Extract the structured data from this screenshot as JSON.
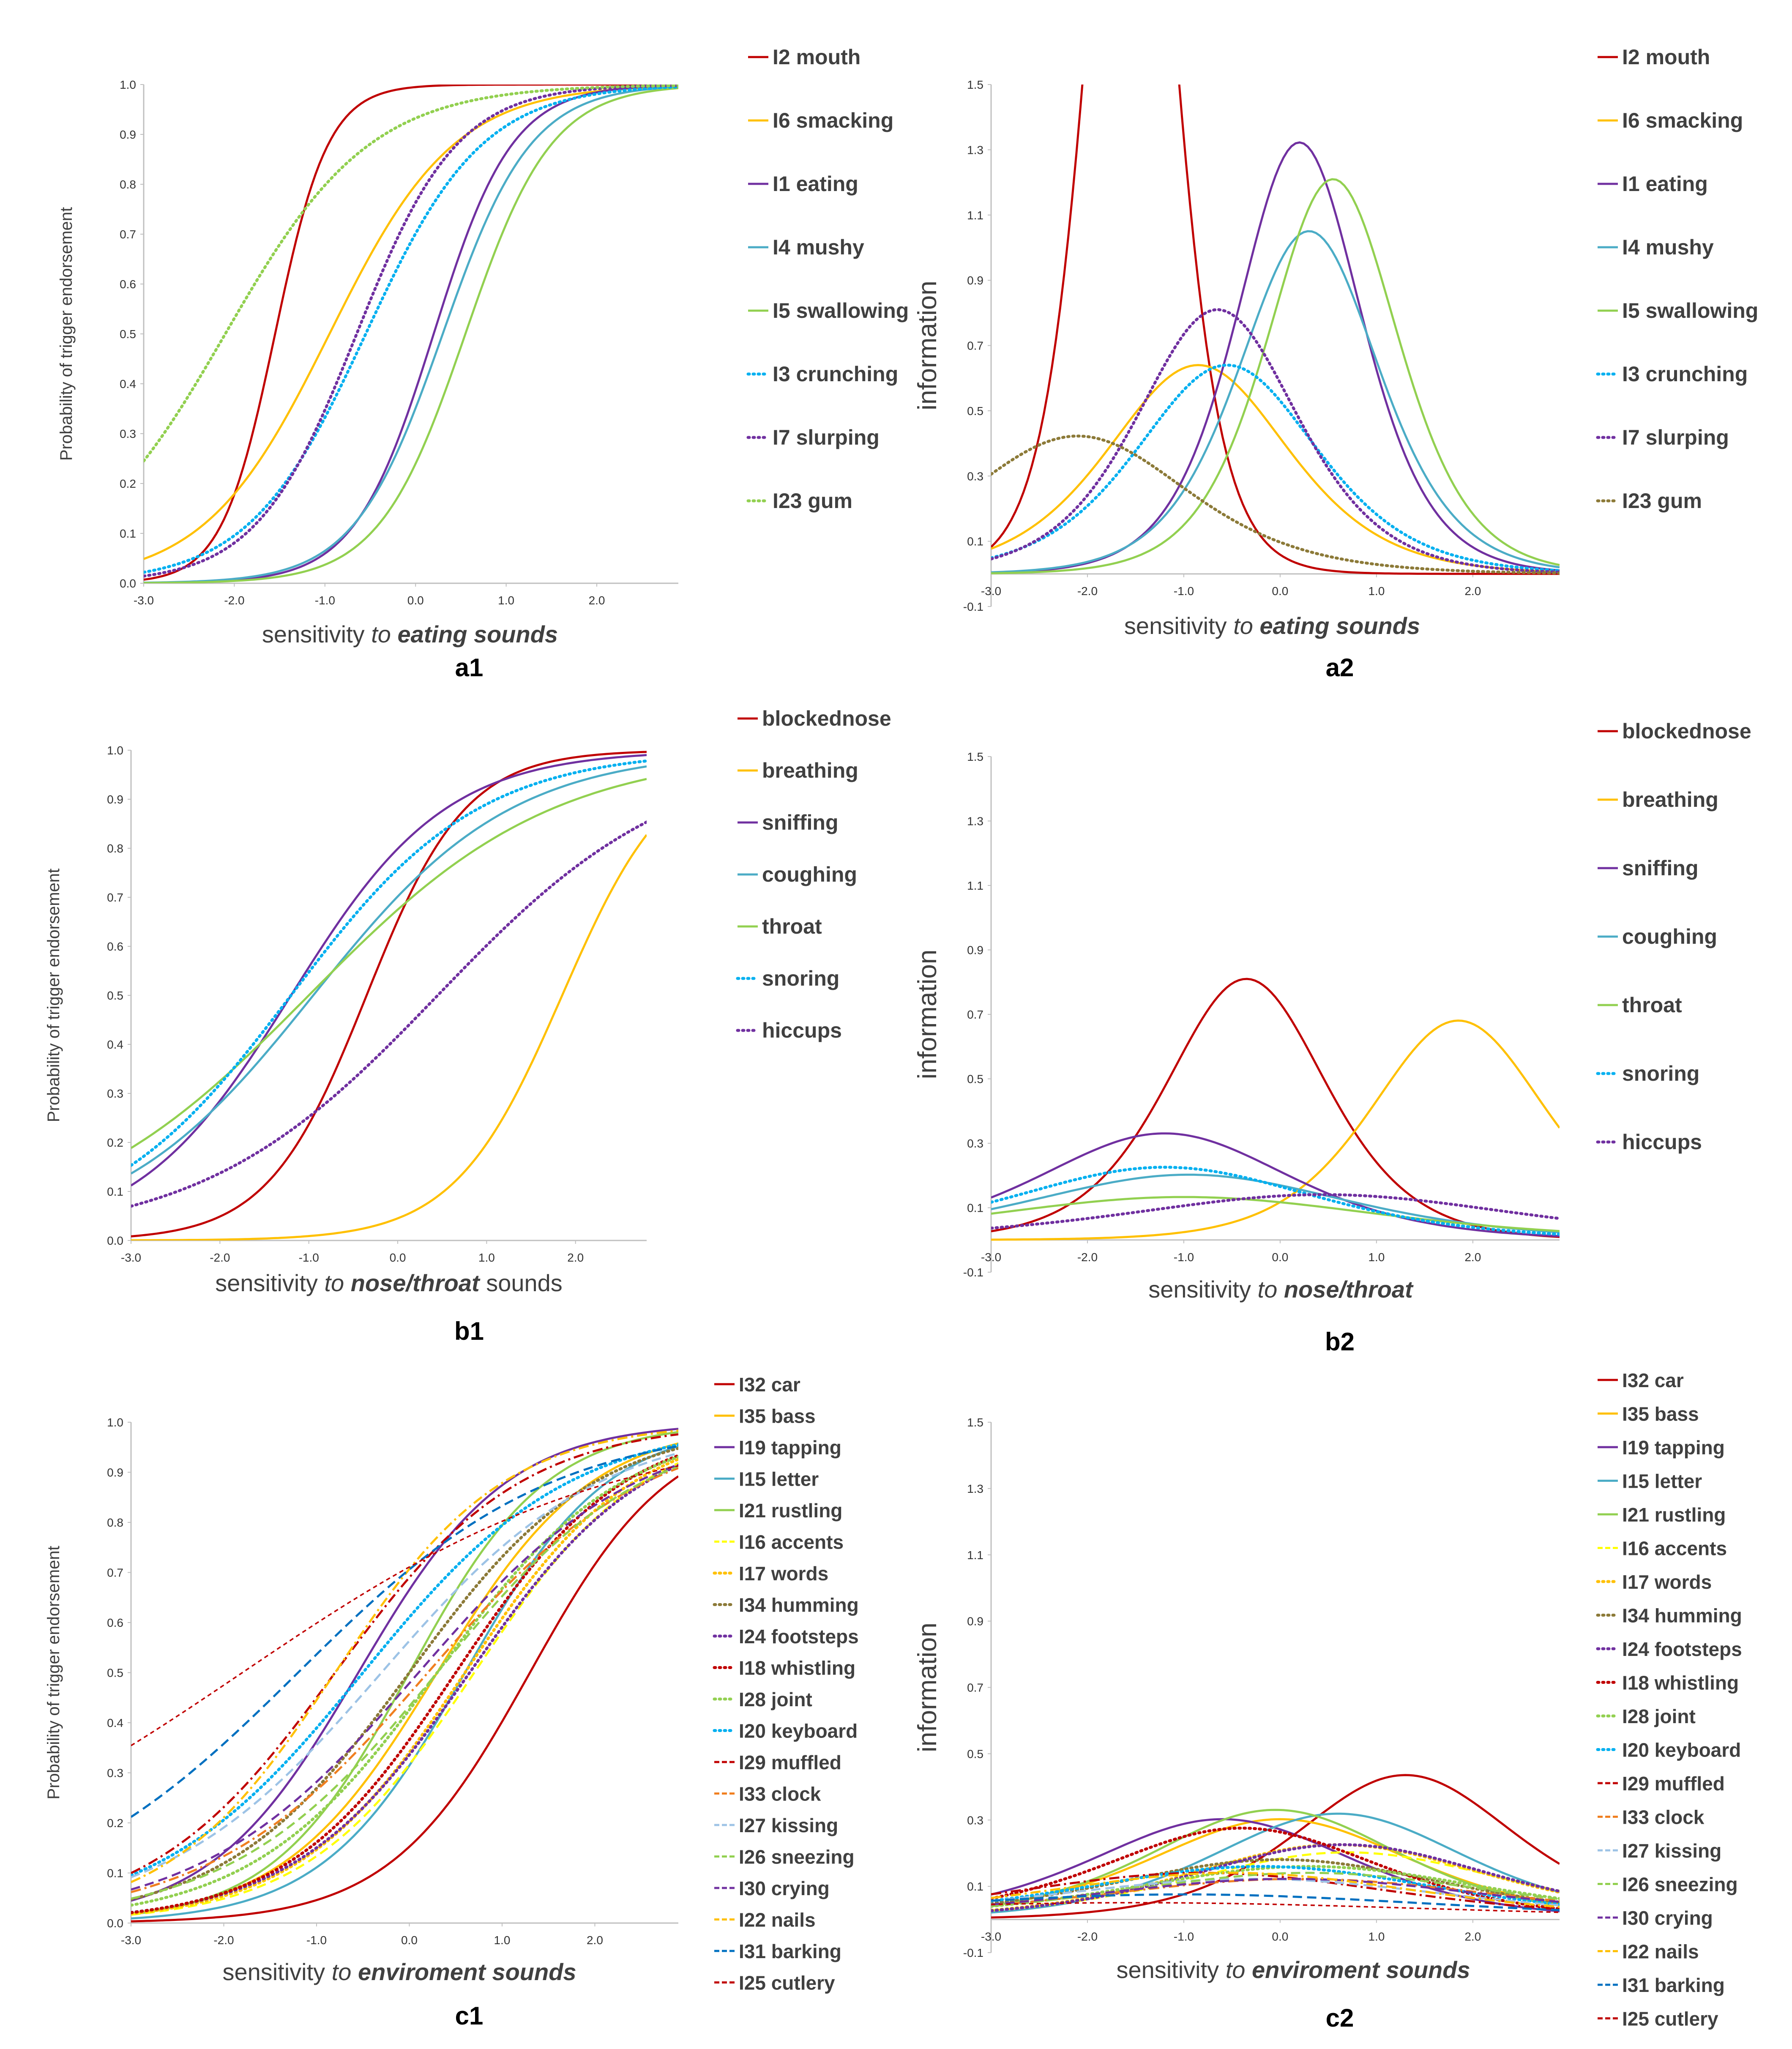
{
  "colors": {
    "red": "#C00000",
    "orange": "#FFC000",
    "purple": "#7030A0",
    "teal": "#4BACC6",
    "green": "#92D050",
    "cyan": "#00B0F0",
    "olive": "#8C7A38",
    "darkorange": "#F07F20",
    "lightblue": "#9DC3E6",
    "blue": "#0070C0",
    "yellow": "#FFFF00",
    "gold": "#FFD700",
    "axis": "#BFBFBF"
  },
  "chart_data": [
    {
      "id": "a1",
      "type": "line",
      "panel_label": "a1",
      "title": "",
      "xlabel_pre": "sensitivity ",
      "xlabel_it": "to ",
      "xlabel_bold": "eating sounds",
      "xlabel_post": "",
      "ylabel": "Probability of trigger endorsement",
      "xlim": [
        -3.0,
        2.9
      ],
      "ylim": [
        0.0,
        1.0
      ],
      "xticks": [
        "-3.0",
        "-2.0",
        "-1.0",
        "0.0",
        "1.0",
        "2.0"
      ],
      "yticks": [
        "0.0",
        "0.1",
        "0.2",
        "0.3",
        "0.4",
        "0.5",
        "0.6",
        "0.7",
        "0.8",
        "0.9",
        "1.0"
      ],
      "series": [
        {
          "name": "I2 mouth",
          "color": "#C00000",
          "dash": "solid",
          "a": 3.4,
          "b": -1.55
        },
        {
          "name": "I6 smacking",
          "color": "#FFC000",
          "dash": "solid",
          "a": 1.45,
          "b": -0.95
        },
        {
          "name": "I1 eating",
          "color": "#7030A0",
          "dash": "solid",
          "a": 2.3,
          "b": 0.2
        },
        {
          "name": "I4 mushy",
          "color": "#4BACC6",
          "dash": "solid",
          "a": 2.05,
          "b": 0.3
        },
        {
          "name": "I5 swallowing",
          "color": "#92D050",
          "dash": "solid",
          "a": 2.1,
          "b": 0.55
        },
        {
          "name": "I3 crunching",
          "color": "#00B0F0",
          "dash": "dot",
          "a": 1.55,
          "b": -0.55
        },
        {
          "name": "I7 slurping",
          "color": "#7030A0",
          "dash": "dot",
          "a": 1.8,
          "b": -0.65
        },
        {
          "name": "I23 gum",
          "color": "#92D050",
          "dash": "dot",
          "a": 1.25,
          "b": -2.1
        }
      ]
    },
    {
      "id": "a2",
      "type": "line",
      "panel_label": "a2",
      "title": "",
      "xlabel_pre": "sensitivity ",
      "xlabel_it": "to ",
      "xlabel_bold": "eating  sounds",
      "xlabel_post": "",
      "ylabel": "information",
      "xlim": [
        -3.0,
        2.9
      ],
      "ylim": [
        -0.1,
        1.5
      ],
      "xticks": [
        "-3.0",
        "-2.0",
        "-1.0",
        "0.0",
        "1.0",
        "2.0"
      ],
      "yticks": [
        "-0.1",
        "0.1",
        "0.3",
        "0.5",
        "0.7",
        "0.9",
        "1.1",
        "1.3",
        "1.5"
      ],
      "series": [
        {
          "name": "I2 mouth",
          "color": "#C00000",
          "dash": "solid",
          "a": 3.4,
          "b": -1.55
        },
        {
          "name": "I6 smacking",
          "color": "#FFC000",
          "dash": "solid",
          "a": 1.6,
          "b": -0.85
        },
        {
          "name": "I1 eating",
          "color": "#7030A0",
          "dash": "solid",
          "a": 2.3,
          "b": 0.2
        },
        {
          "name": "I4 mushy",
          "color": "#4BACC6",
          "dash": "solid",
          "a": 2.05,
          "b": 0.3
        },
        {
          "name": "I5 swallowing",
          "color": "#92D050",
          "dash": "solid",
          "a": 2.2,
          "b": 0.55
        },
        {
          "name": "I3 crunching",
          "color": "#00B0F0",
          "dash": "dot",
          "a": 1.6,
          "b": -0.55
        },
        {
          "name": "I7 slurping",
          "color": "#7030A0",
          "dash": "dot",
          "a": 1.8,
          "b": -0.65
        },
        {
          "name": "I23 gum",
          "color": "#8C7A38",
          "dash": "dot",
          "a": 1.3,
          "b": -2.1
        }
      ]
    },
    {
      "id": "b1",
      "type": "line",
      "panel_label": "b1",
      "title": "",
      "xlabel_pre": "sensitivity ",
      "xlabel_it": "to ",
      "xlabel_bold": "nose/throat",
      "xlabel_post": " sounds",
      "ylabel": "Probability of trigger endorsement",
      "xlim": [
        -3.0,
        2.8
      ],
      "ylim": [
        0.0,
        1.0
      ],
      "xticks": [
        "-3.0",
        "-2.0",
        "-1.0",
        "0.0",
        "1.0",
        "2.0"
      ],
      "yticks": [
        "0.0",
        "0.1",
        "0.2",
        "0.3",
        "0.4",
        "0.5",
        "0.6",
        "0.7",
        "0.8",
        "0.9",
        "1.0"
      ],
      "series": [
        {
          "name": "blockednose",
          "color": "#C00000",
          "dash": "solid",
          "a": 1.8,
          "b": -0.35
        },
        {
          "name": "breathing",
          "color": "#FFC000",
          "dash": "solid",
          "a": 1.65,
          "b": 1.85
        },
        {
          "name": "sniffing",
          "color": "#7030A0",
          "dash": "solid",
          "a": 1.15,
          "b": -1.2
        },
        {
          "name": "coughing",
          "color": "#4BACC6",
          "dash": "solid",
          "a": 0.9,
          "b": -0.95
        },
        {
          "name": "throat",
          "color": "#92D050",
          "dash": "solid",
          "a": 0.73,
          "b": -1.0
        },
        {
          "name": "snoring",
          "color": "#00B0F0",
          "dash": "dot",
          "a": 0.95,
          "b": -1.2
        },
        {
          "name": "hiccups",
          "color": "#7030A0",
          "dash": "dot",
          "a": 0.75,
          "b": 0.45
        }
      ]
    },
    {
      "id": "b2",
      "type": "line",
      "panel_label": "b2",
      "title": "",
      "xlabel_pre": "sensitivity ",
      "xlabel_it": "to ",
      "xlabel_bold": "nose/throat",
      "xlabel_post": "",
      "ylabel": "information",
      "xlim": [
        -3.0,
        2.9
      ],
      "ylim": [
        -0.1,
        1.5
      ],
      "xticks": [
        "-3.0",
        "-2.0",
        "-1.0",
        "0.0",
        "1.0",
        "2.0"
      ],
      "yticks": [
        "-0.1",
        "0.1",
        "0.3",
        "0.5",
        "0.7",
        "0.9",
        "1.1",
        "1.3",
        "1.5"
      ],
      "series": [
        {
          "name": "blockednose",
          "color": "#C00000",
          "dash": "solid",
          "a": 1.8,
          "b": -0.35
        },
        {
          "name": "breathing",
          "color": "#FFC000",
          "dash": "solid",
          "a": 1.65,
          "b": 1.85
        },
        {
          "name": "sniffing",
          "color": "#7030A0",
          "dash": "solid",
          "a": 1.15,
          "b": -1.2
        },
        {
          "name": "coughing",
          "color": "#4BACC6",
          "dash": "solid",
          "a": 0.9,
          "b": -0.95
        },
        {
          "name": "throat",
          "color": "#92D050",
          "dash": "solid",
          "a": 0.73,
          "b": -1.0
        },
        {
          "name": "snoring",
          "color": "#00B0F0",
          "dash": "dot",
          "a": 0.95,
          "b": -1.2
        },
        {
          "name": "hiccups",
          "color": "#7030A0",
          "dash": "dot",
          "a": 0.75,
          "b": 0.45
        }
      ]
    },
    {
      "id": "c1",
      "type": "line",
      "panel_label": "c1",
      "title": "",
      "xlabel_pre": "sensitivity ",
      "xlabel_it": "to ",
      "xlabel_bold": "enviroment sounds",
      "xlabel_post": "",
      "ylabel": "Probability of trigger endorsement",
      "xlim": [
        -3.0,
        2.9
      ],
      "ylim": [
        0.0,
        1.0
      ],
      "xticks": [
        "-3.0",
        "-2.0",
        "-1.0",
        "0.0",
        "1.0",
        "2.0"
      ],
      "yticks": [
        "0.0",
        "0.1",
        "0.2",
        "0.3",
        "0.4",
        "0.5",
        "0.6",
        "0.7",
        "0.8",
        "0.9",
        "1.0"
      ],
      "series": [
        {
          "name": "I32 car",
          "color": "#C00000",
          "dash": "solid",
          "a": 1.32,
          "b": 1.3
        },
        {
          "name": "I35 bass",
          "color": "#FFC000",
          "dash": "solid",
          "a": 1.2,
          "b": 0.3
        },
        {
          "name": "I19 tapping",
          "color": "#7030A0",
          "dash": "solid",
          "a": 1.25,
          "b": -0.55
        },
        {
          "name": "I15 letter",
          "color": "#4BACC6",
          "dash": "solid",
          "a": 1.3,
          "b": 0.6
        },
        {
          "name": "I21 rustling",
          "color": "#92D050",
          "dash": "solid",
          "a": 1.35,
          "b": 0.0
        },
        {
          "name": "I16 accents",
          "color": "#FFFF00",
          "dash": "dash",
          "a": 1.1,
          "b": 0.7
        },
        {
          "name": "I17 words",
          "color": "#FFC000",
          "dash": "dot",
          "a": 1.1,
          "b": 0.6
        },
        {
          "name": "I34 humming",
          "color": "#8C7A38",
          "dash": "dot",
          "a": 1.0,
          "b": 0.0
        },
        {
          "name": "I24 footsteps",
          "color": "#7030A0",
          "dash": "dot",
          "a": 1.05,
          "b": 0.65
        },
        {
          "name": "I18 whistling",
          "color": "#C00000",
          "dash": "dot",
          "a": 1.1,
          "b": 0.5
        },
        {
          "name": "I28 joint",
          "color": "#92D050",
          "dash": "dot",
          "a": 1.0,
          "b": 0.3
        },
        {
          "name": "I20 keyboard",
          "color": "#00B0F0",
          "dash": "dot",
          "a": 0.9,
          "b": -0.5
        },
        {
          "name": "I29 muffled",
          "color": "#C00000",
          "dash": "dashdot",
          "a": 1.0,
          "b": -0.8
        },
        {
          "name": "I33 clock",
          "color": "#F07F20",
          "dash": "dashdot",
          "a": 0.85,
          "b": 0.2
        },
        {
          "name": "I27 kissing",
          "color": "#9DC3E6",
          "dash": "dash",
          "a": 0.85,
          "b": -0.3
        },
        {
          "name": "I26 sneezing",
          "color": "#92D050",
          "dash": "dash",
          "a": 0.9,
          "b": 0.3
        },
        {
          "name": "I30 crying",
          "color": "#7030A0",
          "dash": "dash",
          "a": 0.85,
          "b": 0.1
        },
        {
          "name": "I22 nails",
          "color": "#FFC000",
          "dash": "dashdot",
          "a": 1.1,
          "b": -0.8
        },
        {
          "name": "I31 barking",
          "color": "#0070C0",
          "dash": "dash",
          "a": 0.73,
          "b": -1.2
        },
        {
          "name": "I25 cutlery",
          "color": "#C00000",
          "dash": "shortdash",
          "a": 0.5,
          "b": -1.8
        }
      ]
    },
    {
      "id": "c2",
      "type": "line",
      "panel_label": "c2",
      "title": "",
      "xlabel_pre": "sensitivity ",
      "xlabel_it": "to ",
      "xlabel_bold": "enviroment sounds",
      "xlabel_post": "",
      "ylabel": "information",
      "xlim": [
        -3.0,
        2.9
      ],
      "ylim": [
        -0.1,
        1.5
      ],
      "xticks": [
        "-3.0",
        "-2.0",
        "-1.0",
        "0.0",
        "1.0",
        "2.0"
      ],
      "yticks": [
        "-0.1",
        "0.1",
        "0.3",
        "0.5",
        "0.7",
        "0.9",
        "1.1",
        "1.3",
        "1.5"
      ],
      "series": [
        {
          "name": "I32 car",
          "color": "#C00000",
          "dash": "solid",
          "a": 1.32,
          "b": 1.3
        },
        {
          "name": "I35 bass",
          "color": "#FFC000",
          "dash": "solid",
          "a": 1.1,
          "b": 0.0
        },
        {
          "name": "I19 tapping",
          "color": "#7030A0",
          "dash": "solid",
          "a": 1.1,
          "b": -0.6
        },
        {
          "name": "I15 letter",
          "color": "#4BACC6",
          "dash": "solid",
          "a": 1.13,
          "b": 0.6
        },
        {
          "name": "I21 rustling",
          "color": "#92D050",
          "dash": "solid",
          "a": 1.15,
          "b": -0.05
        },
        {
          "name": "I16 accents",
          "color": "#FFFF00",
          "dash": "dash",
          "a": 0.9,
          "b": 0.7
        },
        {
          "name": "I17 words",
          "color": "#FFC000",
          "dash": "dot",
          "a": 0.95,
          "b": 0.6
        },
        {
          "name": "I34 humming",
          "color": "#8C7A38",
          "dash": "dot",
          "a": 0.85,
          "b": 0.0
        },
        {
          "name": "I24 footsteps",
          "color": "#7030A0",
          "dash": "dot",
          "a": 0.95,
          "b": 0.65
        },
        {
          "name": "I18 whistling",
          "color": "#C00000",
          "dash": "dot",
          "a": 1.05,
          "b": -0.4
        },
        {
          "name": "I28 joint",
          "color": "#92D050",
          "dash": "dot",
          "a": 0.8,
          "b": 0.3
        },
        {
          "name": "I20 keyboard",
          "color": "#00B0F0",
          "dash": "dot",
          "a": 0.8,
          "b": -0.2
        },
        {
          "name": "I29 muffled",
          "color": "#C00000",
          "dash": "dashdot",
          "a": 0.75,
          "b": -0.8
        },
        {
          "name": "I33 clock",
          "color": "#F07F20",
          "dash": "dashdot",
          "a": 0.7,
          "b": 0.2
        },
        {
          "name": "I27 kissing",
          "color": "#9DC3E6",
          "dash": "dash",
          "a": 0.7,
          "b": -0.3
        },
        {
          "name": "I26 sneezing",
          "color": "#92D050",
          "dash": "dash",
          "a": 0.75,
          "b": 0.3
        },
        {
          "name": "I30 crying",
          "color": "#7030A0",
          "dash": "dash",
          "a": 0.7,
          "b": 0.1
        },
        {
          "name": "I22 nails",
          "color": "#FFC000",
          "dash": "dashdot",
          "a": 0.75,
          "b": -0.5
        },
        {
          "name": "I31 barking",
          "color": "#0070C0",
          "dash": "dash",
          "a": 0.55,
          "b": -1.0
        },
        {
          "name": "I25 cutlery",
          "color": "#C00000",
          "dash": "shortdash",
          "a": 0.45,
          "b": -1.5
        }
      ]
    }
  ]
}
